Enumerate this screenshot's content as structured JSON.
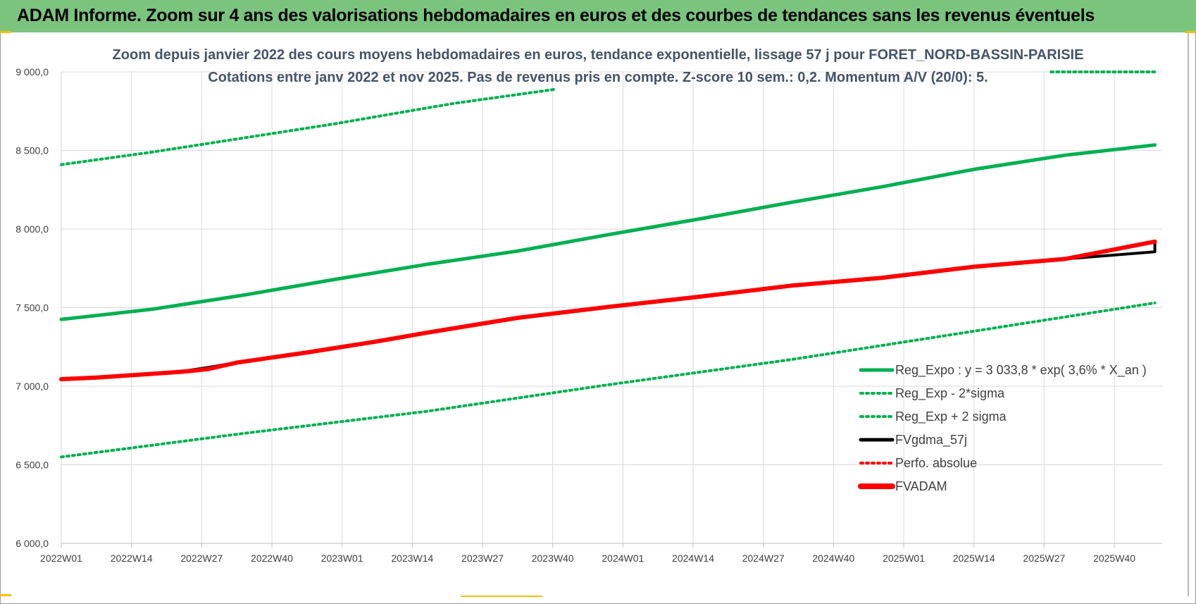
{
  "banner": {
    "title": "ADAM Informe. Zoom sur 4 ans des valorisations hebdomadaires en euros et des courbes de tendances sans les revenus éventuels",
    "background": "#7ac47e"
  },
  "chart_data": {
    "type": "line",
    "title": "Zoom depuis janvier 2022 des cours moyens hebdomadaires en euros, tendance exponentielle, lissage 57 j pour FORET_NORD-BASSIN-PARISIE",
    "subtitle": "Cotations entre janv 2022 et nov 2025. Pas de revenus pris en compte. Z-score 10 sem.: 0,2. Momentum A/V (20/0): 5.",
    "xlabel": "",
    "ylabel": "",
    "x_ticks": [
      "2022W01",
      "2022W14",
      "2022W27",
      "2022W40",
      "2023W01",
      "2023W14",
      "2023W27",
      "2023W40",
      "2024W01",
      "2024W14",
      "2024W27",
      "2024W40",
      "2025W01",
      "2025W14",
      "2025W27",
      "2025W40"
    ],
    "x_range_weeks": [
      0,
      204
    ],
    "ylim": [
      6000,
      9000
    ],
    "y_ticks": [
      "6 000,0",
      "6 500,0",
      "7 000,0",
      "7 500,0",
      "8 000,0",
      "8 500,0",
      "9 000,0"
    ],
    "y_tick_values": [
      6000,
      6500,
      7000,
      7500,
      8000,
      8500,
      9000
    ],
    "grid": true,
    "legend_position": "bottom-right",
    "series": [
      {
        "name": "Reg_Expo : y = 3 033,8 * exp( 3,6% *  X_an )",
        "color": "#00b050",
        "style": "solid",
        "width": 5,
        "points": [
          [
            0,
            7425
          ],
          [
            26,
            7490
          ],
          [
            52,
            7580
          ],
          [
            78,
            7680
          ],
          [
            104,
            7775
          ],
          [
            130,
            7860
          ],
          [
            156,
            7965
          ],
          [
            182,
            8065
          ],
          [
            208,
            8170
          ],
          [
            234,
            8270
          ],
          [
            260,
            8380
          ],
          [
            286,
            8470
          ],
          [
            312,
            8535
          ]
        ]
      },
      {
        "name": "Reg_Exp - 2*sigma",
        "color": "#00b050",
        "style": "dotted",
        "width": 4,
        "points": [
          [
            0,
            6550
          ],
          [
            52,
            6700
          ],
          [
            104,
            6840
          ],
          [
            156,
            7010
          ],
          [
            208,
            7170
          ],
          [
            260,
            7350
          ],
          [
            312,
            7530
          ]
        ]
      },
      {
        "name": "Reg_Exp + 2 sigma",
        "color": "#00b050",
        "style": "dotted",
        "width": 4,
        "points": [
          [
            0,
            8410
          ],
          [
            26,
            8490
          ],
          [
            52,
            8580
          ],
          [
            78,
            8670
          ],
          [
            104,
            8770
          ],
          [
            112,
            8800
          ],
          [
            141,
            8890
          ]
        ],
        "points_segment_2": [
          [
            282,
            9000
          ],
          [
            312,
            9000
          ]
        ]
      },
      {
        "name": "FVgdma_57j",
        "color": "#000000",
        "style": "solid",
        "width": 4,
        "points": [
          [
            0,
            7045
          ],
          [
            10,
            7055
          ],
          [
            20,
            7070
          ],
          [
            30,
            7085
          ],
          [
            36,
            7100
          ],
          [
            42,
            7120
          ],
          [
            50,
            7150
          ],
          [
            70,
            7215
          ],
          [
            90,
            7285
          ],
          [
            104,
            7340
          ],
          [
            130,
            7435
          ],
          [
            156,
            7505
          ],
          [
            182,
            7570
          ],
          [
            208,
            7640
          ],
          [
            234,
            7690
          ],
          [
            260,
            7760
          ],
          [
            286,
            7810
          ],
          [
            312,
            7855
          ],
          [
            338,
            7910
          ],
          [
            312,
            7920
          ]
        ]
      },
      {
        "name": "Perfo. absolue",
        "color": "#ff0000",
        "style": "dotted",
        "width": 3,
        "points": []
      },
      {
        "name": "FVADAM",
        "color": "#ff0000",
        "style": "solid",
        "width": 6,
        "points": [
          [
            0,
            7045
          ],
          [
            10,
            7055
          ],
          [
            20,
            7070
          ],
          [
            30,
            7085
          ],
          [
            36,
            7095
          ],
          [
            42,
            7110
          ],
          [
            50,
            7150
          ],
          [
            70,
            7215
          ],
          [
            90,
            7285
          ],
          [
            104,
            7340
          ],
          [
            130,
            7435
          ],
          [
            156,
            7505
          ],
          [
            182,
            7570
          ],
          [
            208,
            7640
          ],
          [
            234,
            7690
          ],
          [
            260,
            7760
          ],
          [
            286,
            7810
          ],
          [
            312,
            7920
          ]
        ]
      }
    ]
  }
}
